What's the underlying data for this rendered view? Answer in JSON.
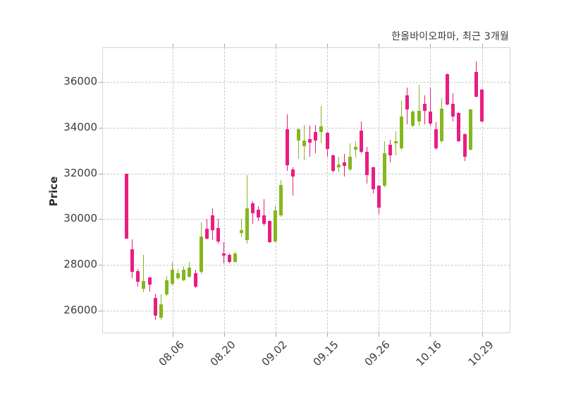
{
  "title": "한올바이오파마, 최근 3개월",
  "y_axis_label": "Price",
  "colors": {
    "up": "#85b71e",
    "down": "#ea1d81",
    "grid": "#c9c9c9",
    "spine": "#d4d4d4",
    "tick_text": "#3d3d3d",
    "title_text": "#3a3a3a",
    "background": "#ffffff"
  },
  "chart_data": {
    "type": "candlestick",
    "title": "한올바이오파마, 최근 3개월",
    "ylabel": "Price",
    "ylim": [
      25040,
      37480
    ],
    "yticks": [
      26000,
      28000,
      30000,
      32000,
      34000,
      36000
    ],
    "xtick_labels": [
      "08.06",
      "08.20",
      "09.02",
      "09.15",
      "09.26",
      "10.16",
      "10.29"
    ],
    "xtick_indices": [
      8,
      17,
      26,
      35,
      44,
      53,
      62
    ],
    "grid": true,
    "grid_style": "dashed",
    "up_color": "#85b71e",
    "down_color": "#ea1d81",
    "candles_format": [
      "open",
      "high",
      "low",
      "close"
    ],
    "candles": [
      [
        32000,
        32000,
        29160,
        29160
      ],
      [
        28670,
        29130,
        27430,
        27680
      ],
      [
        27740,
        27830,
        27060,
        27270
      ],
      [
        26960,
        28450,
        26810,
        27300
      ],
      [
        27460,
        27480,
        26840,
        27150
      ],
      [
        26540,
        26750,
        25610,
        25770
      ],
      [
        25680,
        26700,
        25610,
        26280
      ],
      [
        26700,
        27520,
        26650,
        27310
      ],
      [
        27160,
        28140,
        27110,
        27780
      ],
      [
        27420,
        27830,
        27370,
        27620
      ],
      [
        27310,
        27930,
        27280,
        27780
      ],
      [
        27470,
        28140,
        27440,
        27880
      ],
      [
        27620,
        27780,
        27000,
        27060
      ],
      [
        27680,
        29850,
        27600,
        29230
      ],
      [
        29580,
        30000,
        29100,
        29150
      ],
      [
        30150,
        30460,
        29070,
        29530
      ],
      [
        29600,
        30000,
        28920,
        29010
      ],
      [
        28510,
        28980,
        28050,
        28390
      ],
      [
        28450,
        28500,
        28080,
        28140
      ],
      [
        28140,
        28560,
        28100,
        28510
      ],
      [
        29380,
        30000,
        29230,
        29530
      ],
      [
        29070,
        31920,
        28920,
        30460
      ],
      [
        30680,
        30770,
        29780,
        30250
      ],
      [
        30400,
        30560,
        29910,
        30060
      ],
      [
        30150,
        30870,
        29690,
        29780
      ],
      [
        29910,
        29950,
        28950,
        28980
      ],
      [
        29010,
        30560,
        28980,
        30370
      ],
      [
        30150,
        31700,
        30090,
        31480
      ],
      [
        33920,
        34590,
        32110,
        32370
      ],
      [
        32160,
        32260,
        31020,
        31860
      ],
      [
        33450,
        33970,
        32630,
        33920
      ],
      [
        33190,
        34100,
        32560,
        33450
      ],
      [
        33500,
        34080,
        32720,
        33350
      ],
      [
        33800,
        34100,
        32870,
        33440
      ],
      [
        33800,
        34950,
        33300,
        34060
      ],
      [
        33770,
        33800,
        32720,
        33050
      ],
      [
        32790,
        32830,
        32040,
        32100
      ],
      [
        32250,
        32720,
        32060,
        32400
      ],
      [
        32470,
        32840,
        31860,
        32310
      ],
      [
        32160,
        33310,
        32100,
        32720
      ],
      [
        33030,
        33400,
        32690,
        33150
      ],
      [
        33860,
        34260,
        32870,
        32930
      ],
      [
        32930,
        33150,
        31540,
        31910
      ],
      [
        32250,
        32280,
        31130,
        31320
      ],
      [
        31470,
        31500,
        30230,
        30510
      ],
      [
        31450,
        33400,
        31400,
        32870
      ],
      [
        33240,
        33460,
        32470,
        32780
      ],
      [
        33310,
        33830,
        32780,
        33400
      ],
      [
        33090,
        35160,
        33050,
        34480
      ],
      [
        35410,
        35750,
        34140,
        34790
      ],
      [
        34080,
        34760,
        34020,
        34700
      ],
      [
        34260,
        35880,
        34080,
        34730
      ],
      [
        35040,
        35410,
        34140,
        34730
      ],
      [
        34700,
        35750,
        34080,
        34170
      ],
      [
        33920,
        34230,
        33030,
        33090
      ],
      [
        33400,
        35290,
        33350,
        34820
      ],
      [
        36340,
        36370,
        34980,
        35010
      ],
      [
        35040,
        35500,
        34260,
        34480
      ],
      [
        34640,
        34670,
        33370,
        33400
      ],
      [
        33710,
        33740,
        32530,
        32720
      ],
      [
        33030,
        34820,
        33000,
        34790
      ],
      [
        36430,
        36900,
        35320,
        35350
      ],
      [
        35660,
        35690,
        34230,
        34260
      ]
    ]
  }
}
